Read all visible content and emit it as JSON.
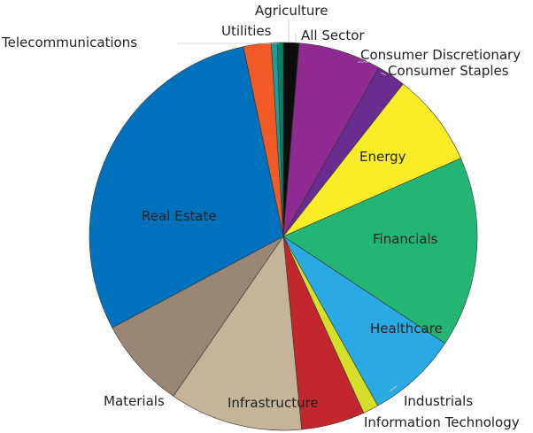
{
  "chart_data": {
    "type": "pie",
    "start_angle_deg": 0,
    "direction": "clockwise",
    "slices": [
      {
        "label": "All Sector",
        "value": 1.3,
        "color": "#0d0d0d"
      },
      {
        "label": "Consumer Discretionary",
        "value": 6.9,
        "color": "#8e2a92"
      },
      {
        "label": "Consumer Staples",
        "value": 2.4,
        "color": "#6a2c91"
      },
      {
        "label": "Energy",
        "value": 7.8,
        "color": "#fbec28"
      },
      {
        "label": "Financials",
        "value": 15.9,
        "color": "#23b573"
      },
      {
        "label": "Healthcare",
        "value": 7.6,
        "color": "#29aae2"
      },
      {
        "label": "Industrials",
        "value": 1.3,
        "color": "#d5df29"
      },
      {
        "label": "Information Technology",
        "value": 5.3,
        "color": "#c1272d"
      },
      {
        "label": "Infrastructure",
        "value": 11.1,
        "color": "#c6b49a"
      },
      {
        "label": "Materials",
        "value": 7.6,
        "color": "#998675"
      },
      {
        "label": "Real Estate",
        "value": 29.5,
        "color": "#0071bc"
      },
      {
        "label": "Telecommunications",
        "value": 2.3,
        "color": "#f15a24"
      },
      {
        "label": "Utilities",
        "value": 0.5,
        "color": "#16a09a"
      },
      {
        "label": "Agriculture",
        "value": 0.5,
        "color": "#0b7f66"
      }
    ]
  }
}
